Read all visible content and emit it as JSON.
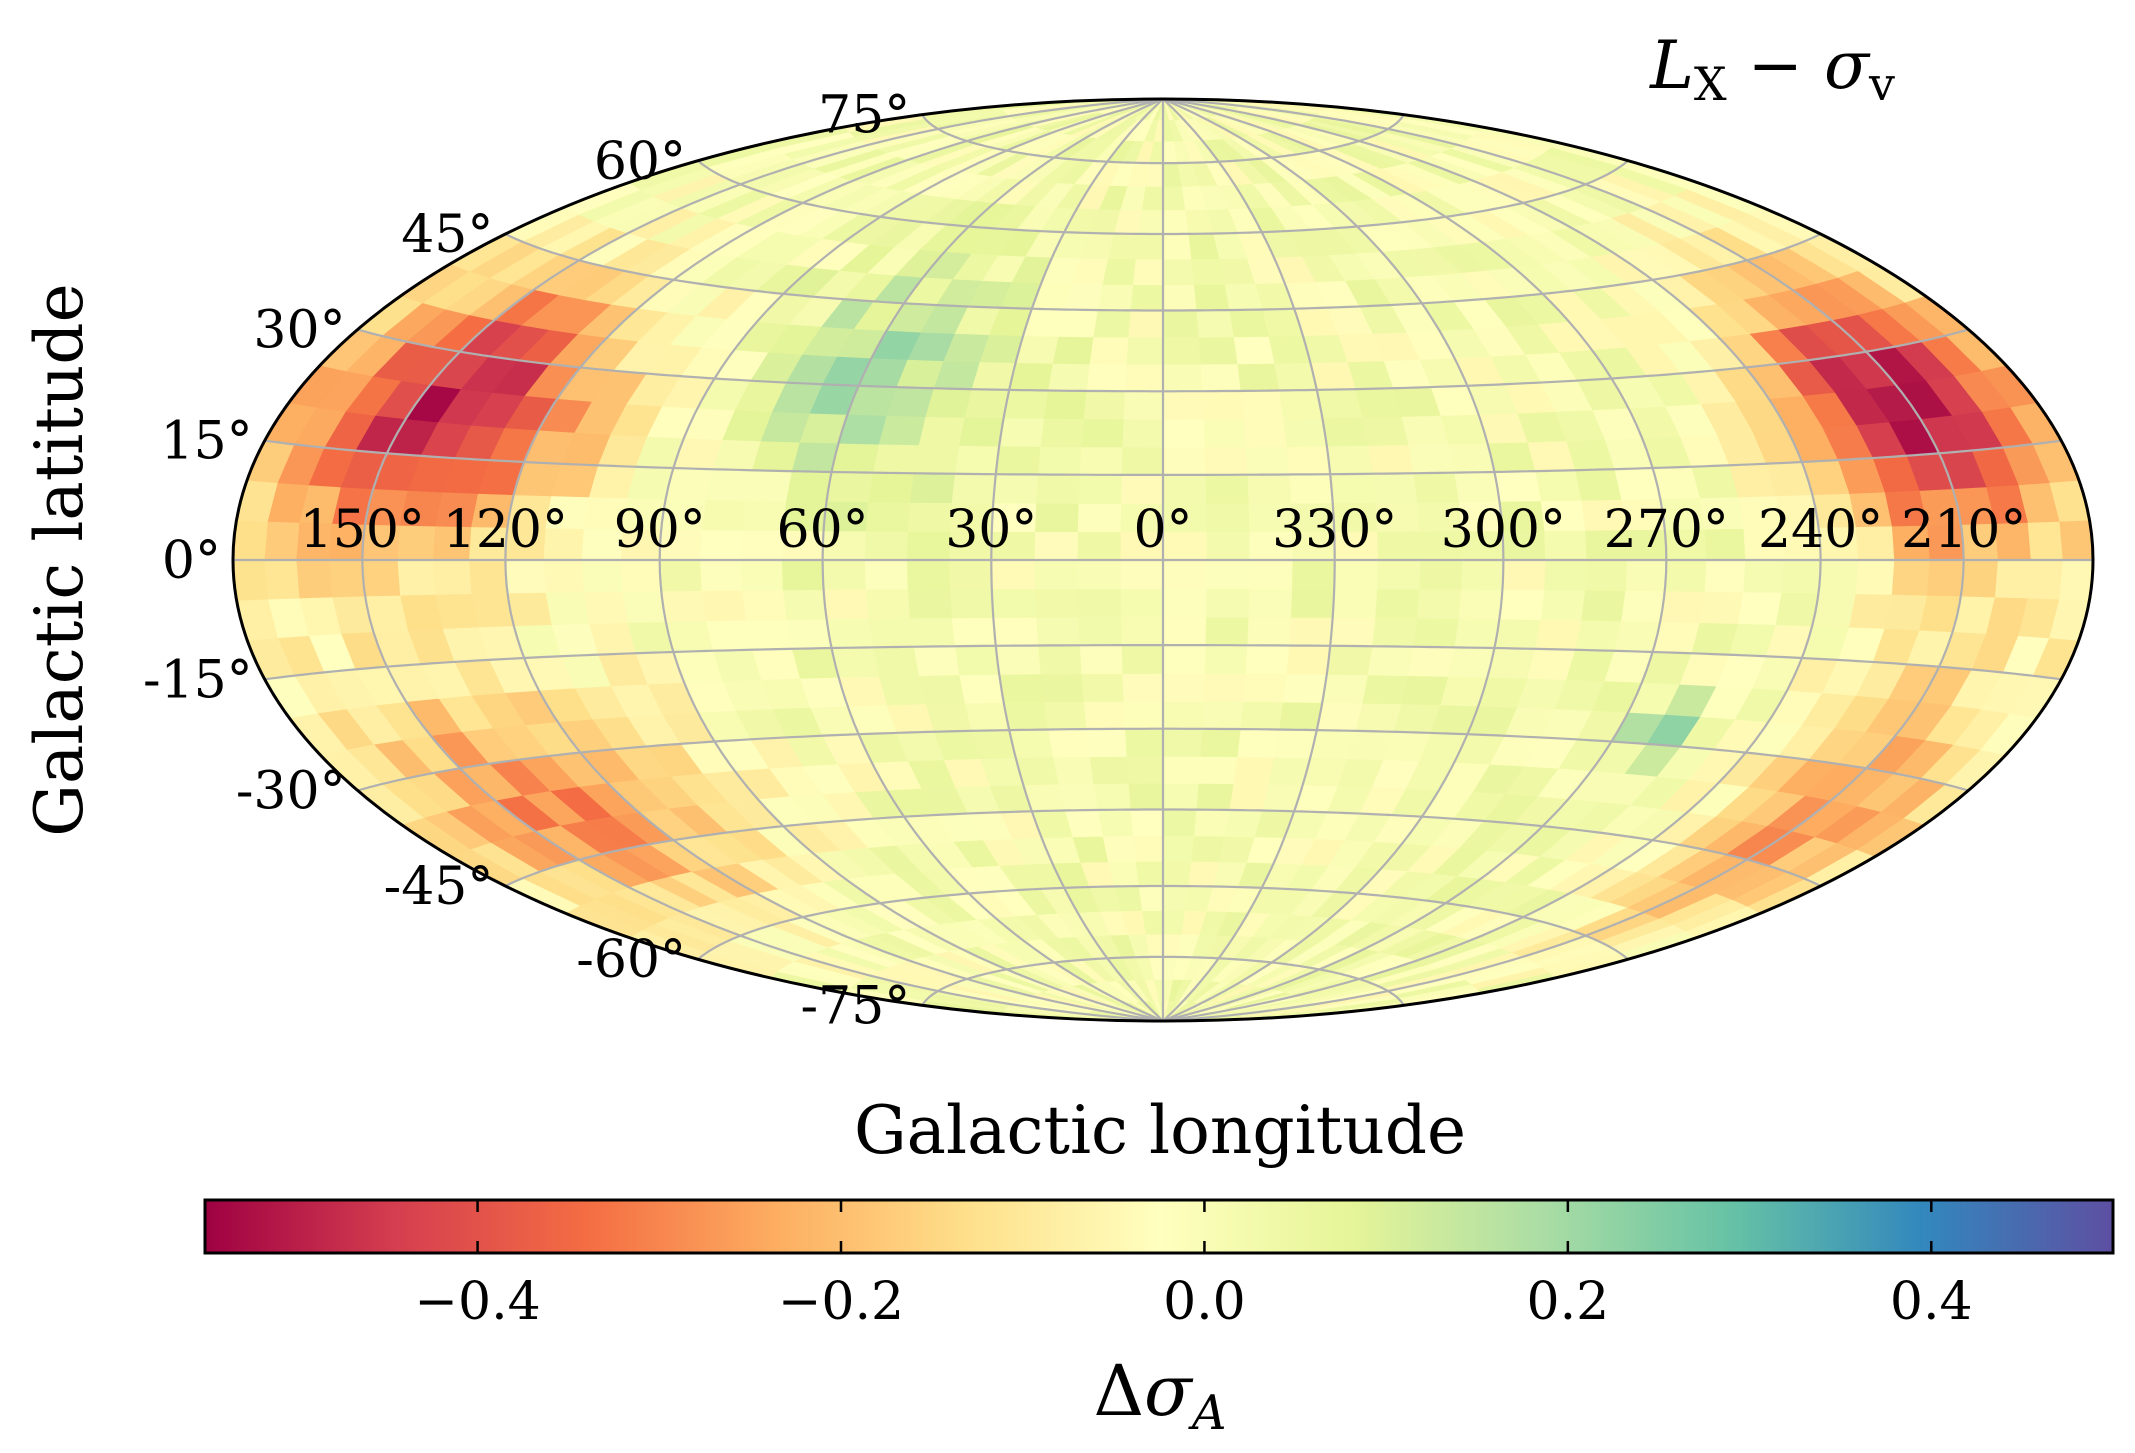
{
  "chart_data": {
    "type": "heatmap",
    "projection": "hammer",
    "title": "L_X − σ_v",
    "title_parts": {
      "main": "L",
      "sub1": "X",
      "minus": " − ",
      "sigma": "σ",
      "sub2": "v"
    },
    "xlabel": "Galactic longitude",
    "ylabel": "Galactic latitude",
    "longitude_ticks": [
      150,
      120,
      90,
      60,
      30,
      0,
      330,
      300,
      270,
      240,
      210
    ],
    "longitude_tick_labels": [
      "150°",
      "120°",
      "90°",
      "60°",
      "30°",
      "0°",
      "330°",
      "300°",
      "270°",
      "240°",
      "210°"
    ],
    "latitude_ticks": [
      75,
      60,
      45,
      30,
      15,
      0,
      -15,
      -30,
      -45,
      -60,
      -75
    ],
    "latitude_tick_labels": [
      "75°",
      "60°",
      "45°",
      "30°",
      "15°",
      "0°",
      "-15°",
      "-30°",
      "-45°",
      "-60°",
      "-75°"
    ],
    "colormap": "Spectral",
    "colormap_stops": [
      "#9e0142",
      "#d53e4f",
      "#f46d43",
      "#fdae61",
      "#fee08b",
      "#ffffbf",
      "#e6f598",
      "#abdda4",
      "#66c2a5",
      "#3288bd",
      "#5e4fa2"
    ],
    "value_range": [
      -0.55,
      0.5
    ],
    "colorbar": {
      "label": "Δσ_A",
      "label_parts": {
        "delta": "Δ",
        "sigma": "σ",
        "sub": "A"
      },
      "ticks": [
        -0.4,
        -0.2,
        0.0,
        0.2,
        0.4
      ],
      "tick_labels": [
        "−0.4",
        "−0.2",
        "0.0",
        "0.2",
        "0.4"
      ]
    },
    "grid": true,
    "features": [
      {
        "description": "strong negative region",
        "lon_range": [
          120,
          165
        ],
        "lat_range": [
          10,
          35
        ],
        "peak_value": -0.52
      },
      {
        "description": "strong negative region",
        "lon_range": [
          195,
          230
        ],
        "lat_range": [
          10,
          35
        ],
        "peak_value": -0.55
      },
      {
        "description": "moderate negative region",
        "lon_range": [
          110,
          165
        ],
        "lat_range": [
          -50,
          -25
        ],
        "peak_value": -0.3
      },
      {
        "description": "moderate negative region",
        "lon_range": [
          195,
          225
        ],
        "lat_range": [
          -50,
          -25
        ],
        "peak_value": -0.3
      },
      {
        "description": "positive patch",
        "lon_range": [
          40,
          75
        ],
        "lat_range": [
          20,
          45
        ],
        "peak_value": 0.17
      },
      {
        "description": "positive patch",
        "lon_range": [
          255,
          265
        ],
        "lat_range": [
          -30,
          -25
        ],
        "peak_value": 0.2
      }
    ]
  }
}
